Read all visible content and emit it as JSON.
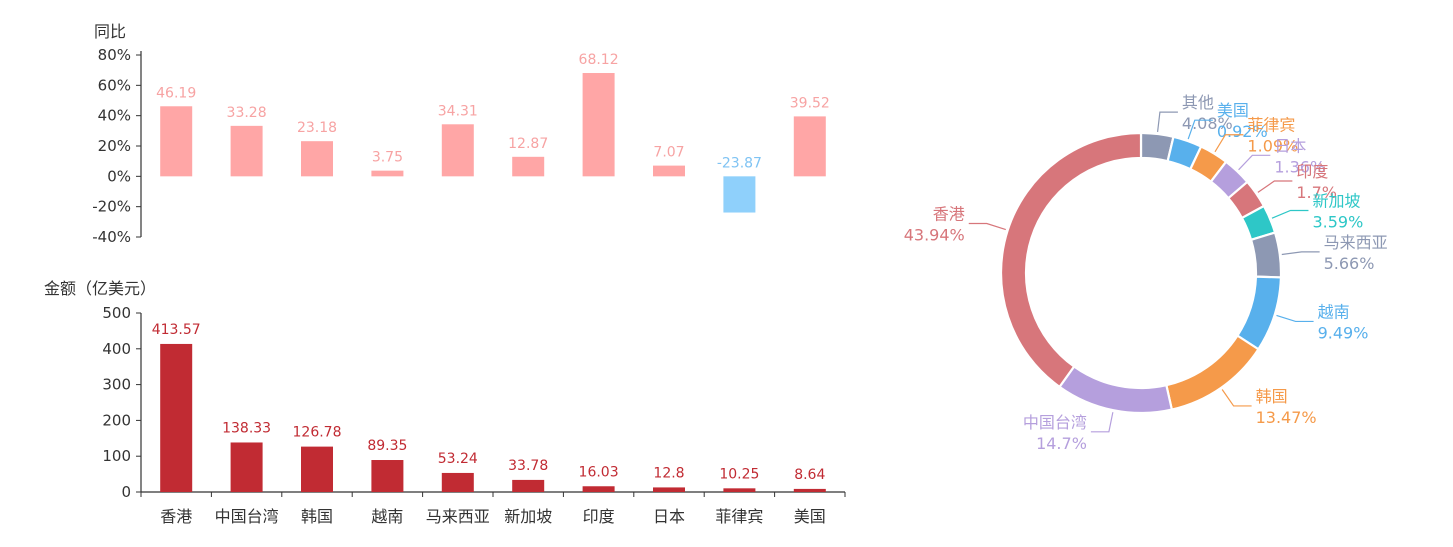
{
  "charts": {
    "yoy": {
      "type": "bar",
      "ylabel": "同比",
      "ylim": [
        -40,
        80
      ],
      "yticks": [
        -40,
        -20,
        0,
        20,
        40,
        60,
        80
      ],
      "tick_suffix": "%",
      "categories": [
        "香港",
        "中国台湾",
        "韩国",
        "越南",
        "马来西亚",
        "新加坡",
        "印度",
        "日本",
        "菲律宾",
        "美国"
      ],
      "values": [
        46.19,
        33.28,
        23.18,
        3.75,
        34.31,
        12.87,
        68.12,
        7.07,
        -23.87,
        39.52
      ],
      "labels": [
        "46.19",
        "33.28",
        "23.18",
        "3.75",
        "34.31",
        "12.87",
        "68.12",
        "7.07",
        "-23.87",
        "39.52"
      ],
      "colors": {
        "positive": "#ffa6a6",
        "negative": "#8fd0fb",
        "positive_label": "#f7a3a3",
        "negative_label": "#7fc3f3"
      }
    },
    "amount": {
      "type": "bar",
      "ylabel": "金额（亿美元）",
      "ylim": [
        0,
        500
      ],
      "yticks": [
        0,
        100,
        200,
        300,
        400,
        500
      ],
      "categories": [
        "香港",
        "中国台湾",
        "韩国",
        "越南",
        "马来西亚",
        "新加坡",
        "印度",
        "日本",
        "菲律宾",
        "美国"
      ],
      "values": [
        413.57,
        138.33,
        126.78,
        89.35,
        53.24,
        33.78,
        16.03,
        12.8,
        10.25,
        8.64
      ],
      "labels": [
        "413.57",
        "138.33",
        "126.78",
        "89.35",
        "53.24",
        "33.78",
        "16.03",
        "12.8",
        "10.25",
        "8.64"
      ],
      "colors": {
        "bar": "#c12b33",
        "label": "#c12b33"
      }
    },
    "share": {
      "type": "pie",
      "donut": true,
      "slices": [
        {
          "name": "其他",
          "value": 4.08,
          "label": "4.08%",
          "color": "#8d98b3"
        },
        {
          "name": "美国",
          "value": 0.92,
          "label": "0.92%",
          "color": "#58b0ec"
        },
        {
          "name": "菲律宾",
          "value": 1.09,
          "label": "1.09%",
          "color": "#f59a4a"
        },
        {
          "name": "日本",
          "value": 1.36,
          "label": "1.36%",
          "color": "#b59fdd"
        },
        {
          "name": "印度",
          "value": 1.7,
          "label": "1.7%",
          "color": "#d7767b"
        },
        {
          "name": "新加坡",
          "value": 3.59,
          "label": "3.59%",
          "color": "#2ec7c7"
        },
        {
          "name": "马来西亚",
          "value": 5.66,
          "label": "5.66%",
          "color": "#8d98b3"
        },
        {
          "name": "越南",
          "value": 9.49,
          "label": "9.49%",
          "color": "#58b0ec"
        },
        {
          "name": "韩国",
          "value": 13.47,
          "label": "13.47%",
          "color": "#f59a4a"
        },
        {
          "name": "中国台湾",
          "value": 14.7,
          "label": "14.7%",
          "color": "#b59fdd"
        },
        {
          "name": "香港",
          "value": 43.94,
          "label": "43.94%",
          "color": "#d7767b"
        }
      ]
    }
  }
}
